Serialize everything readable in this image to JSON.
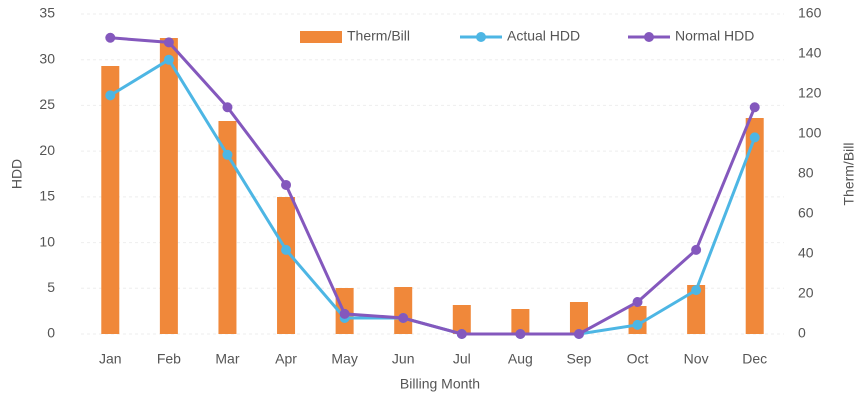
{
  "chart_data": {
    "type": "bar-line",
    "categories": [
      "Jan",
      "Feb",
      "Mar",
      "Apr",
      "May",
      "Jun",
      "Jul",
      "Aug",
      "Sep",
      "Oct",
      "Nov",
      "Dec"
    ],
    "x_label": "Billing Month",
    "y_label": "HDD",
    "y2_label": "Therm/Bill",
    "ylim": [
      0,
      35
    ],
    "yticks": [
      0,
      5,
      10,
      15,
      20,
      25,
      30,
      35
    ],
    "y2lim": [
      0,
      160
    ],
    "y2ticks": [
      0,
      20,
      40,
      60,
      80,
      100,
      120,
      140,
      160
    ],
    "grid": true,
    "legend": "top",
    "series": [
      {
        "name": "Therm/Bill",
        "kind": "bar",
        "axis": "y2",
        "color": "#f0883a",
        "values": [
          134,
          148,
          106.5,
          68.5,
          23,
          23.5,
          14.5,
          12.5,
          16,
          14,
          24.5,
          108
        ]
      },
      {
        "name": "Actual HDD",
        "kind": "line",
        "color": "#4db6e4",
        "values": [
          26.1,
          30,
          19.6,
          9.2,
          1.75,
          1.75,
          0,
          0,
          0,
          1,
          4.8,
          21.5
        ]
      },
      {
        "name": "Normal HDD",
        "kind": "line",
        "color": "#8458bd",
        "values": [
          32.4,
          31.9,
          24.8,
          16.3,
          2.2,
          1.75,
          0,
          0,
          0,
          3.5,
          9.2,
          24.8
        ]
      }
    ]
  }
}
